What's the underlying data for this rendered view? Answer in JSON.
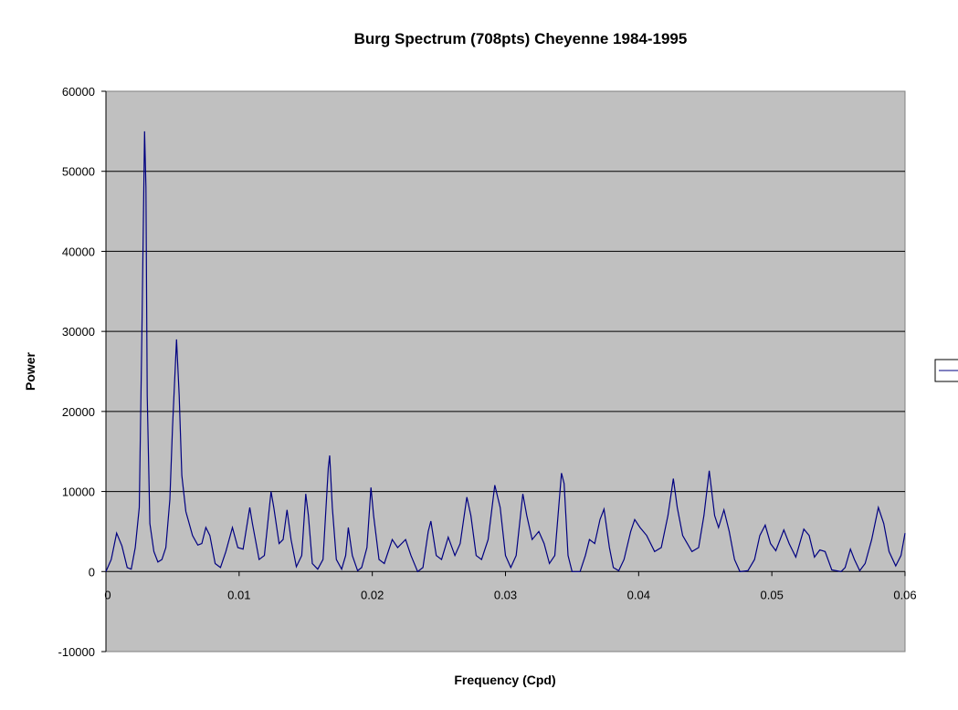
{
  "chart_data": {
    "type": "line",
    "title": "Burg Spectrum (708pts) Cheyenne 1984-1995",
    "xlabel": "Frequency (Cpd)",
    "ylabel": "Power",
    "xlim": [
      0,
      0.06
    ],
    "ylim": [
      -10000,
      60000
    ],
    "x_ticks": [
      "0",
      "0.01",
      "0.02",
      "0.03",
      "0.04",
      "0.05",
      "0.06"
    ],
    "y_ticks": [
      "60000",
      "50000",
      "40000",
      "30000",
      "20000",
      "10000",
      "0",
      "-10000"
    ],
    "grid": true,
    "plot_background": "#c0c0c0",
    "line_color": "#000080",
    "legend_placement": "right",
    "series": [
      {
        "points": [
          [
            0,
            0
          ],
          [
            0.0004,
            1500
          ],
          [
            0.0008,
            4800
          ],
          [
            0.0012,
            3200
          ],
          [
            0.0016,
            500
          ],
          [
            0.0019,
            300
          ],
          [
            0.0022,
            3000
          ],
          [
            0.0025,
            8000
          ],
          [
            0.0027,
            30000
          ],
          [
            0.0029,
            55000
          ],
          [
            0.003,
            48000
          ],
          [
            0.0031,
            22000
          ],
          [
            0.0033,
            6000
          ],
          [
            0.0036,
            2500
          ],
          [
            0.0039,
            1200
          ],
          [
            0.0042,
            1500
          ],
          [
            0.0045,
            3000
          ],
          [
            0.0048,
            9000
          ],
          [
            0.005,
            18000
          ],
          [
            0.0053,
            29000
          ],
          [
            0.0055,
            22000
          ],
          [
            0.0057,
            12000
          ],
          [
            0.006,
            7500
          ],
          [
            0.0065,
            4500
          ],
          [
            0.0069,
            3300
          ],
          [
            0.0072,
            3500
          ],
          [
            0.0075,
            5500
          ],
          [
            0.0078,
            4500
          ],
          [
            0.0082,
            1000
          ],
          [
            0.0086,
            500
          ],
          [
            0.009,
            2500
          ],
          [
            0.0095,
            5500
          ],
          [
            0.0099,
            3000
          ],
          [
            0.0103,
            2800
          ],
          [
            0.0108,
            8000
          ],
          [
            0.011,
            6000
          ],
          [
            0.0115,
            1500
          ],
          [
            0.0119,
            2000
          ],
          [
            0.0124,
            10000
          ],
          [
            0.0126,
            8000
          ],
          [
            0.013,
            3500
          ],
          [
            0.0133,
            4000
          ],
          [
            0.0136,
            7700
          ],
          [
            0.0139,
            4000
          ],
          [
            0.0143,
            600
          ],
          [
            0.0147,
            2000
          ],
          [
            0.015,
            9700
          ],
          [
            0.0152,
            7000
          ],
          [
            0.0155,
            1000
          ],
          [
            0.0159,
            300
          ],
          [
            0.0163,
            1500
          ],
          [
            0.0167,
            13000
          ],
          [
            0.0168,
            14500
          ],
          [
            0.017,
            8000
          ],
          [
            0.0173,
            1500
          ],
          [
            0.0177,
            300
          ],
          [
            0.018,
            2000
          ],
          [
            0.0182,
            5500
          ],
          [
            0.0185,
            2000
          ],
          [
            0.0189,
            100
          ],
          [
            0.0192,
            500
          ],
          [
            0.0196,
            3000
          ],
          [
            0.0199,
            10500
          ],
          [
            0.0201,
            7000
          ],
          [
            0.0205,
            1500
          ],
          [
            0.0209,
            1000
          ],
          [
            0.0215,
            4000
          ],
          [
            0.0219,
            3000
          ],
          [
            0.0225,
            4000
          ],
          [
            0.0229,
            2000
          ],
          [
            0.0234,
            0
          ],
          [
            0.0238,
            500
          ],
          [
            0.0242,
            5000
          ],
          [
            0.0244,
            6300
          ],
          [
            0.0248,
            2000
          ],
          [
            0.0252,
            1500
          ],
          [
            0.0257,
            4300
          ],
          [
            0.0262,
            2000
          ],
          [
            0.0266,
            3500
          ],
          [
            0.0271,
            9300
          ],
          [
            0.0274,
            7000
          ],
          [
            0.0278,
            2000
          ],
          [
            0.0282,
            1500
          ],
          [
            0.0287,
            4000
          ],
          [
            0.0292,
            10800
          ],
          [
            0.0296,
            8000
          ],
          [
            0.03,
            2000
          ],
          [
            0.0304,
            500
          ],
          [
            0.0308,
            2000
          ],
          [
            0.0313,
            9700
          ],
          [
            0.0316,
            7000
          ],
          [
            0.032,
            4000
          ],
          [
            0.0325,
            5000
          ],
          [
            0.0329,
            3500
          ],
          [
            0.0333,
            1000
          ],
          [
            0.0337,
            2000
          ],
          [
            0.0342,
            12300
          ],
          [
            0.0344,
            11000
          ],
          [
            0.0347,
            2000
          ],
          [
            0.035,
            0
          ],
          [
            0.0356,
            0
          ],
          [
            0.036,
            2000
          ],
          [
            0.0363,
            4000
          ],
          [
            0.0367,
            3500
          ],
          [
            0.0371,
            6500
          ],
          [
            0.0374,
            7800
          ],
          [
            0.0378,
            3000
          ],
          [
            0.0381,
            500
          ],
          [
            0.0385,
            100
          ],
          [
            0.0389,
            1500
          ],
          [
            0.0394,
            5000
          ],
          [
            0.0397,
            6500
          ],
          [
            0.0401,
            5500
          ],
          [
            0.0406,
            4500
          ],
          [
            0.0412,
            2500
          ],
          [
            0.0417,
            3000
          ],
          [
            0.0422,
            7000
          ],
          [
            0.0426,
            11600
          ],
          [
            0.0429,
            8000
          ],
          [
            0.0433,
            4500
          ],
          [
            0.044,
            2500
          ],
          [
            0.0445,
            3000
          ],
          [
            0.0449,
            7000
          ],
          [
            0.0453,
            12600
          ],
          [
            0.0457,
            7000
          ],
          [
            0.046,
            5500
          ],
          [
            0.0464,
            7700
          ],
          [
            0.0468,
            5000
          ],
          [
            0.0472,
            1500
          ],
          [
            0.0476,
            0
          ],
          [
            0.0482,
            100
          ],
          [
            0.0487,
            1500
          ],
          [
            0.0491,
            4500
          ],
          [
            0.0495,
            5800
          ],
          [
            0.0499,
            3500
          ],
          [
            0.0503,
            2600
          ],
          [
            0.0509,
            5200
          ],
          [
            0.0513,
            3500
          ],
          [
            0.0518,
            1800
          ],
          [
            0.0524,
            5300
          ],
          [
            0.0528,
            4500
          ],
          [
            0.0532,
            1800
          ],
          [
            0.0536,
            2700
          ],
          [
            0.054,
            2500
          ],
          [
            0.0545,
            200
          ],
          [
            0.0552,
            0
          ],
          [
            0.0555,
            500
          ],
          [
            0.0559,
            2800
          ],
          [
            0.0562,
            1500
          ],
          [
            0.0566,
            100
          ],
          [
            0.057,
            1000
          ],
          [
            0.0575,
            4000
          ],
          [
            0.058,
            8000
          ],
          [
            0.0584,
            6000
          ],
          [
            0.0588,
            2500
          ],
          [
            0.0593,
            700
          ],
          [
            0.0597,
            2000
          ],
          [
            0.06,
            4800
          ]
        ]
      }
    ]
  }
}
